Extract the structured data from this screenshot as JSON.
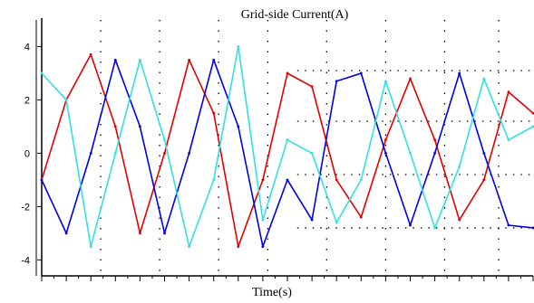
{
  "chart_data": {
    "type": "line",
    "title": "Grid-side Current(A)",
    "xlabel": "Time(s)",
    "ylabel": "",
    "ylim": [
      -4.6,
      5.0
    ],
    "xlim": [
      0,
      1
    ],
    "y_ticks": [
      4,
      2,
      0,
      -2,
      -4
    ],
    "grid": true,
    "legend": "none",
    "series": [
      {
        "color": "#e00000",
        "values": {
          "x": [
            0.0,
            0.05,
            0.1,
            0.15,
            0.2,
            0.25,
            0.3,
            0.35,
            0.4,
            0.45,
            0.5,
            0.55,
            0.6,
            0.65,
            0.7,
            0.75,
            0.8,
            0.85,
            0.9,
            0.95,
            1.0
          ],
          "y": [
            -1.0,
            2.0,
            3.7,
            1.0,
            -3.0,
            0.0,
            3.5,
            1.5,
            -3.5,
            -1.0,
            3.0,
            2.5,
            -1.0,
            -2.4,
            0.5,
            2.8,
            0.5,
            -2.5,
            -1.0,
            2.3,
            1.5
          ]
        }
      },
      {
        "color": "#0000e0",
        "values": {
          "x": [
            0.0,
            0.05,
            0.1,
            0.15,
            0.2,
            0.25,
            0.3,
            0.35,
            0.4,
            0.45,
            0.5,
            0.55,
            0.6,
            0.65,
            0.7,
            0.75,
            0.8,
            0.85,
            0.9,
            0.95,
            1.0
          ],
          "y": [
            -1.0,
            -3.0,
            0.0,
            3.5,
            1.0,
            -3.0,
            0.0,
            3.5,
            1.0,
            -3.5,
            -1.0,
            -2.5,
            2.7,
            3.0,
            0.0,
            -2.7,
            0.0,
            3.0,
            0.0,
            -2.7,
            -2.8
          ]
        }
      },
      {
        "color": "#33e0e0",
        "values": {
          "x": [
            0.0,
            0.05,
            0.1,
            0.15,
            0.2,
            0.25,
            0.3,
            0.35,
            0.4,
            0.45,
            0.5,
            0.55,
            0.6,
            0.65,
            0.7,
            0.75,
            0.8,
            0.85,
            0.9,
            0.95,
            1.0
          ],
          "y": [
            3.0,
            2.0,
            -3.5,
            0.0,
            3.5,
            0.5,
            -3.5,
            -1.0,
            4.0,
            -2.5,
            0.5,
            0.0,
            -2.6,
            -1.0,
            2.7,
            0.0,
            -2.8,
            -0.5,
            2.8,
            0.5,
            1.0
          ]
        }
      }
    ],
    "reference_levels": [
      3.1,
      1.2,
      -0.8,
      -2.8
    ]
  }
}
